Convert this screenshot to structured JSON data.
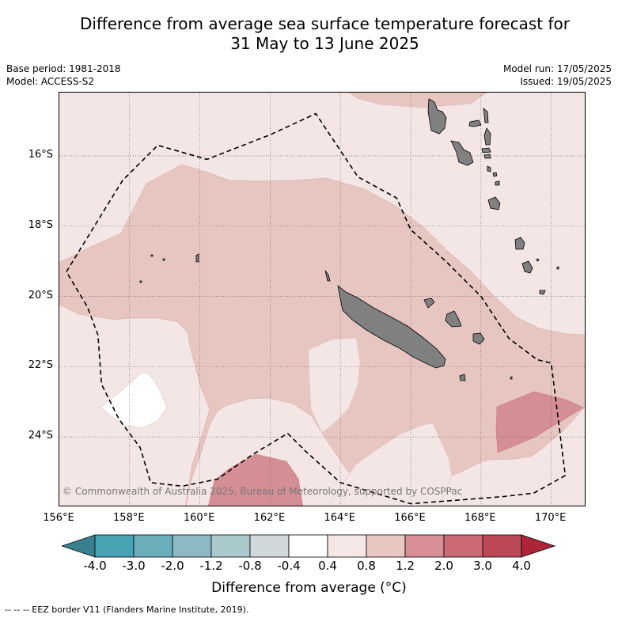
{
  "title": {
    "line1": "Difference from average sea surface temperature forecast for",
    "line2": "31 May to 13 June 2025"
  },
  "meta": {
    "base_period": "Base period: 1981-2018",
    "model": "Model: ACCESS-S2",
    "model_run": "Model run: 17/05/2025",
    "issued": "Issued: 19/05/2025"
  },
  "map": {
    "lon_range": [
      156,
      171
    ],
    "lat_range": [
      -26.0,
      -14.2
    ],
    "x_ticks": [
      {
        "value": 158,
        "label": "158°E"
      },
      {
        "value": 160,
        "label": "160°E"
      },
      {
        "value": 162,
        "label": "162°E"
      },
      {
        "value": 164,
        "label": "164°E"
      },
      {
        "value": 166,
        "label": "166°E"
      },
      {
        "value": 168,
        "label": "168°E"
      },
      {
        "value": 170,
        "label": "170°E"
      }
    ],
    "x_edge_label": "156°E",
    "y_ticks": [
      {
        "value": -16,
        "label": "16°S"
      },
      {
        "value": -18,
        "label": "18°S"
      },
      {
        "value": -20,
        "label": "20°S"
      },
      {
        "value": -22,
        "label": "22°S"
      },
      {
        "value": -24,
        "label": "24°S"
      }
    ],
    "gridlines": "on",
    "copyright": "© Commonwealth of Australia 2025, Bureau of Meteorology, supported by COSPPac",
    "colors": {
      "band_0.4_0.8": "#f4e6e5",
      "band_0.8_1.2": "#e7c6c1",
      "band_1.2_2.0": "#d58e95",
      "band_-0.4_0.4": "#ffffff",
      "land": "#808080",
      "grid": "#555555"
    },
    "eez_border": [
      [
        156.2,
        -19.3
      ],
      [
        157.0,
        -18.0
      ],
      [
        157.8,
        -16.7
      ],
      [
        158.8,
        -15.7
      ],
      [
        160.2,
        -16.1
      ],
      [
        162.0,
        -15.4
      ],
      [
        163.3,
        -14.8
      ],
      [
        164.5,
        -16.6
      ],
      [
        165.6,
        -17.2
      ],
      [
        166.0,
        -18.1
      ],
      [
        167.0,
        -19.0
      ],
      [
        168.0,
        -20.0
      ],
      [
        168.8,
        -21.2
      ],
      [
        169.6,
        -21.8
      ],
      [
        170.0,
        -21.9
      ],
      [
        170.4,
        -25.1
      ],
      [
        169.5,
        -25.6
      ],
      [
        168.6,
        -25.7
      ],
      [
        166.0,
        -25.9
      ],
      [
        164.0,
        -25.3
      ],
      [
        163.0,
        -24.4
      ],
      [
        162.5,
        -23.9
      ],
      [
        161.5,
        -24.5
      ],
      [
        160.5,
        -25.2
      ],
      [
        159.5,
        -25.4
      ],
      [
        158.6,
        -25.3
      ],
      [
        158.3,
        -24.3
      ],
      [
        157.7,
        -23.5
      ],
      [
        157.2,
        -22.5
      ],
      [
        157.1,
        -21.1
      ],
      [
        156.8,
        -20.3
      ],
      [
        156.2,
        -19.3
      ]
    ]
  },
  "colorbar": {
    "ticks": [
      "-4.0",
      "-3.0",
      "-2.0",
      "-1.2",
      "-0.8",
      "-0.4",
      "0.4",
      "0.8",
      "1.2",
      "2.0",
      "3.0",
      "4.0"
    ],
    "colors": [
      "#47a3b3",
      "#6aaebb",
      "#8cb9c4",
      "#aac9cc",
      "#cfd8da",
      "#ffffff",
      "#f5e7e6",
      "#e9c6c2",
      "#d88e96",
      "#cb6a76",
      "#bd4657"
    ],
    "low_extend_color": "#3a7f8d",
    "high_extend_color": "#ac2438",
    "label": "Difference from average (°C)"
  },
  "footnote": "--  --  -- EEZ border V11 (Flanders Marine Institute, 2019)."
}
